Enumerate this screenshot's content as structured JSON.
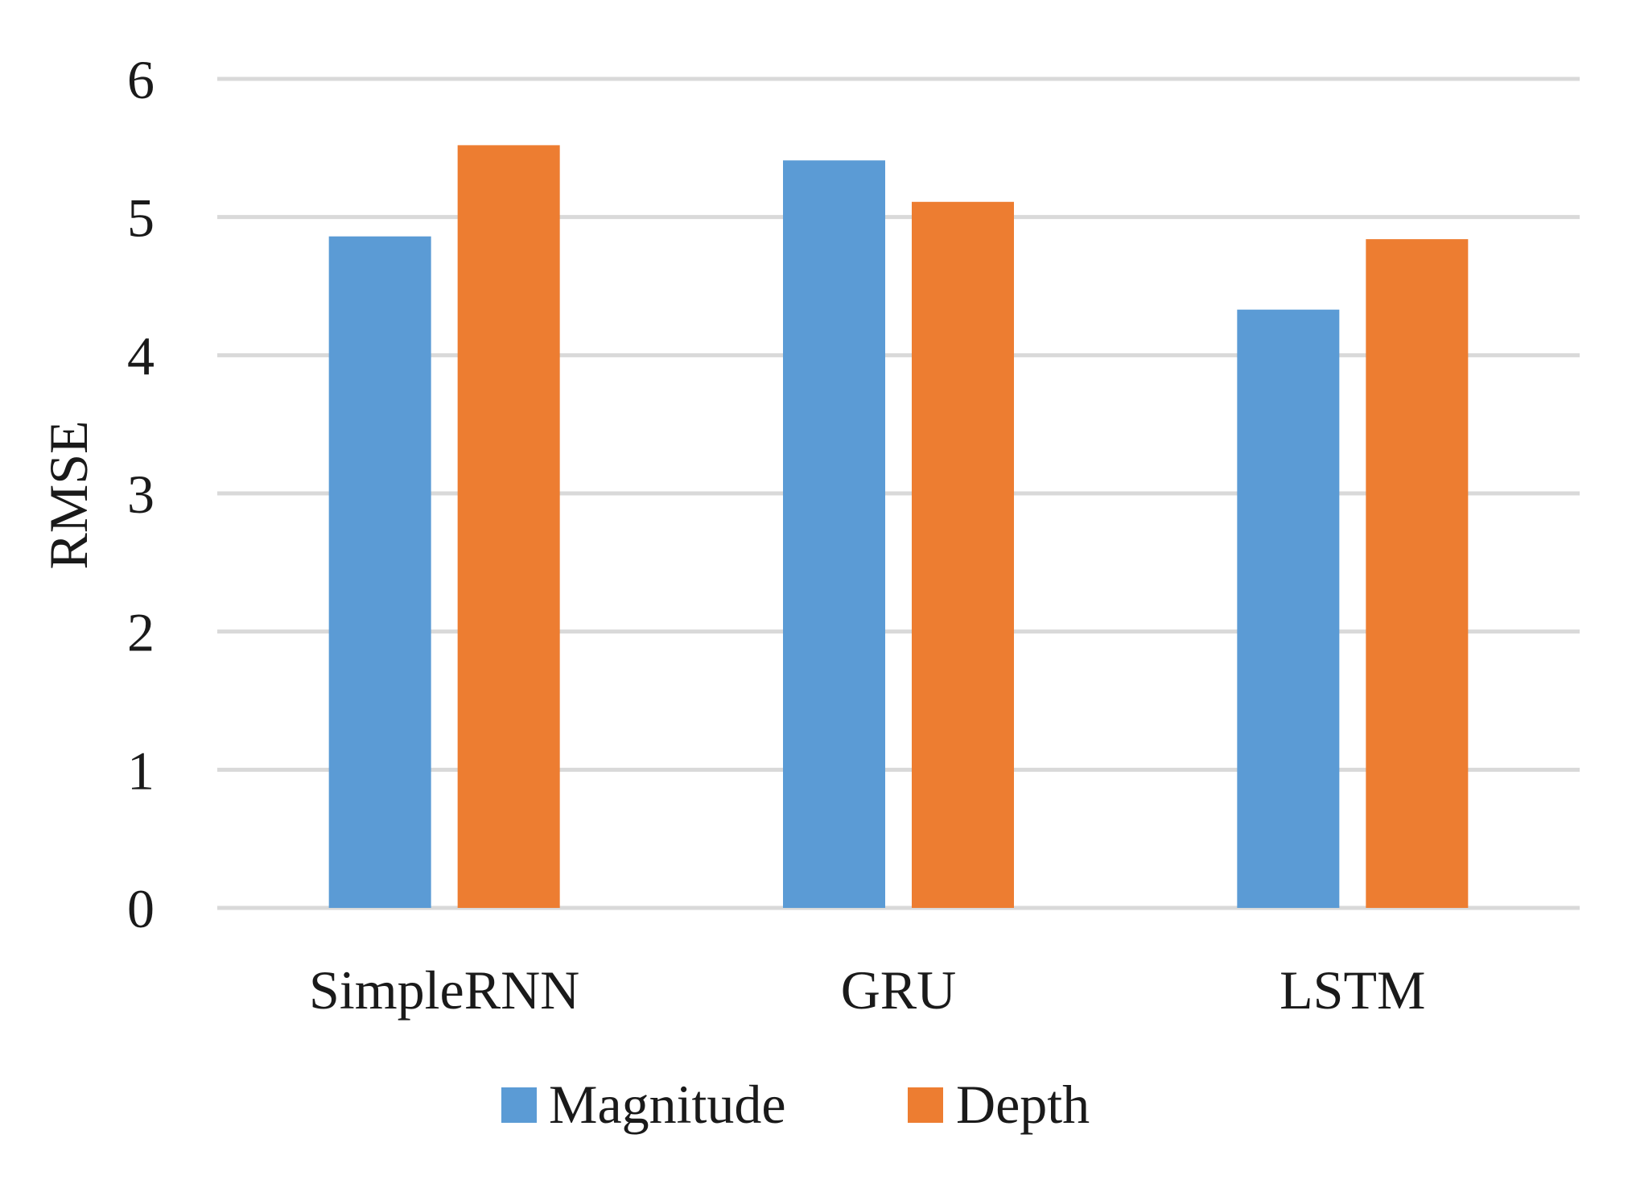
{
  "chart_data": {
    "type": "bar",
    "title": "",
    "xlabel": "",
    "ylabel": "RMSE",
    "categories": [
      "SimpleRNN",
      "GRU",
      "LSTM"
    ],
    "series": [
      {
        "name": "Magnitude",
        "color": "#5B9BD5",
        "values": [
          4.86,
          5.41,
          4.33
        ]
      },
      {
        "name": "Depth",
        "color": "#ED7D31",
        "values": [
          5.52,
          5.11,
          4.84
        ]
      }
    ],
    "ylim": [
      0,
      6
    ],
    "yticks": [
      "0",
      "1",
      "2",
      "3",
      "4",
      "5",
      "6"
    ],
    "grid": true,
    "gridline_color": "#d9d9d9",
    "legend_position": "bottom-center"
  }
}
